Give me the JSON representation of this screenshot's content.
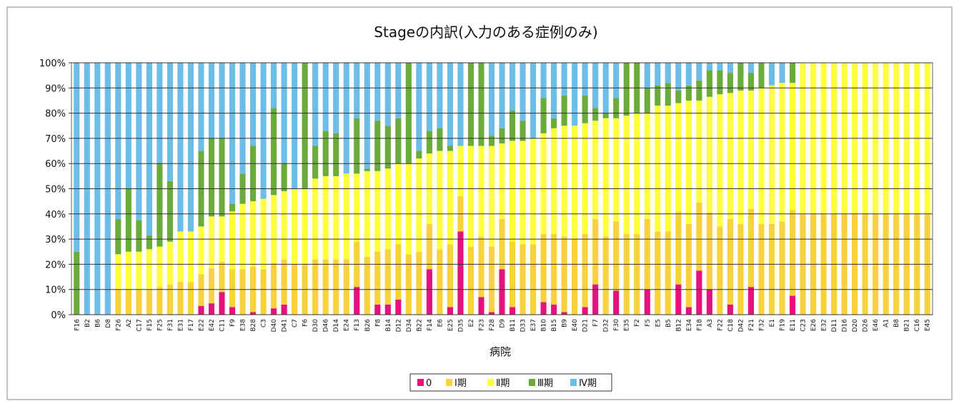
{
  "chart_data": {
    "type": "stacked_bar",
    "title": "Stageの内訳(入力のある症例のみ)",
    "x_label": "病院",
    "categories": [
      "F16",
      "B2",
      "B6",
      "D8",
      "F26",
      "A2",
      "C17",
      "F15",
      "F25",
      "F31",
      "E31",
      "F17",
      "E22",
      "E42",
      "C11",
      "F9",
      "E38",
      "B28",
      "C3",
      "D40",
      "D41",
      "C7",
      "F6",
      "D30",
      "D46",
      "D14",
      "E24",
      "F13",
      "B26",
      "F8",
      "B14",
      "D12",
      "D34",
      "B22",
      "F14",
      "E6",
      "E25",
      "D35",
      "E2",
      "F23",
      "F28",
      "D9",
      "B11",
      "D33",
      "E37",
      "B10",
      "B15",
      "B9",
      "E40",
      "D21",
      "F7",
      "D32",
      "F30",
      "E35",
      "F2",
      "F5",
      "E5",
      "B5",
      "B12",
      "E34",
      "F18",
      "A3",
      "F22",
      "C18",
      "D42",
      "F21",
      "F32",
      "E1",
      "F19",
      "E11",
      "C23",
      "E26",
      "E32",
      "D11",
      "D16",
      "D20",
      "D26",
      "E46",
      "A1",
      "B8",
      "B21",
      "C16",
      "E45"
    ],
    "series": [
      {
        "name": "0",
        "color": "#e5127d",
        "values": [
          0,
          0,
          0,
          0,
          0,
          0,
          0,
          0,
          0,
          0,
          0,
          0,
          3.5,
          4.5,
          9,
          3,
          0,
          1,
          0,
          2.5,
          4,
          0,
          0,
          0,
          0,
          0,
          0,
          11,
          0,
          4,
          4,
          6,
          0,
          0,
          18,
          0,
          3,
          33,
          0,
          7,
          1,
          18,
          3,
          0,
          0,
          5,
          4,
          1,
          0,
          3,
          12,
          0,
          9.5,
          0,
          0,
          10,
          0,
          0,
          12,
          3,
          17.5,
          10,
          0,
          4,
          0,
          11,
          0,
          0,
          0,
          7.5,
          0,
          0,
          0,
          0,
          0,
          0,
          0,
          0,
          0,
          0,
          0,
          0,
          0
        ]
      },
      {
        "name": "Ⅰ期",
        "color": "#f8d23c",
        "values": [
          0,
          0,
          0,
          0,
          10,
          10,
          10,
          10,
          11,
          12,
          13,
          13,
          12.5,
          14,
          12,
          15,
          18,
          18,
          18,
          18,
          18,
          20,
          20,
          22,
          22,
          22,
          22,
          18,
          23,
          21,
          22,
          22,
          24,
          25,
          18,
          26,
          25,
          14,
          27,
          24,
          26,
          20,
          26,
          28,
          28,
          27,
          28,
          30,
          30,
          29,
          26,
          31,
          27.5,
          32,
          32,
          28,
          33,
          33,
          29,
          33,
          27,
          30.5,
          35,
          34,
          36,
          31,
          36,
          36,
          37,
          34,
          40,
          40,
          40,
          40,
          40,
          40,
          40,
          40,
          40,
          40,
          40,
          40,
          40
        ]
      },
      {
        "name": "Ⅱ期",
        "color": "#ffff40",
        "values": [
          0,
          0,
          0,
          0,
          14,
          15,
          15,
          16,
          16,
          17,
          20,
          20,
          19,
          20.5,
          18,
          23,
          26,
          26,
          28,
          27,
          27,
          30,
          30,
          32,
          33,
          33,
          34,
          27,
          34,
          32,
          32,
          32,
          36,
          37,
          28,
          39,
          37,
          20,
          40,
          36,
          40,
          30,
          40,
          41,
          42,
          40,
          42,
          44,
          45,
          44,
          39,
          47,
          41,
          47,
          48,
          42,
          50,
          50,
          43,
          49,
          40.5,
          46,
          52.5,
          50,
          53,
          47,
          54,
          55,
          55,
          50.5,
          60,
          60,
          60,
          60,
          60,
          60,
          60,
          60,
          60,
          60,
          60,
          60,
          60
        ]
      },
      {
        "name": "Ⅲ期",
        "color": "#6aab3c",
        "values": [
          25,
          0,
          0,
          0,
          14,
          25,
          12.5,
          5.5,
          33,
          24,
          0,
          0,
          30,
          31,
          31,
          3,
          12,
          22,
          0,
          34.5,
          11,
          0,
          50,
          13,
          18,
          17,
          0,
          22,
          1,
          20,
          17,
          18,
          40,
          3,
          9,
          9,
          2,
          0,
          33,
          33,
          4,
          6,
          12,
          8,
          0,
          14,
          4,
          12,
          0,
          11,
          5,
          2,
          8,
          21,
          20,
          10,
          8,
          9,
          5,
          6,
          8,
          10.5,
          9.5,
          8,
          11,
          7,
          10,
          0,
          0,
          8,
          0,
          0,
          0,
          0,
          0,
          0,
          0,
          0,
          0,
          0,
          0,
          0,
          0
        ]
      },
      {
        "name": "Ⅳ期",
        "color": "#6dbde9",
        "values": [
          75,
          100,
          100,
          100,
          62,
          50,
          62.5,
          68.5,
          40,
          47,
          67,
          67,
          35,
          30,
          30,
          56,
          44,
          33,
          54,
          18,
          40,
          50,
          0,
          33,
          27,
          28,
          44,
          22,
          42,
          23,
          25,
          22,
          0,
          35,
          27,
          26,
          33,
          33,
          0,
          0,
          29,
          26,
          19,
          23,
          30,
          14,
          22,
          13,
          25,
          13,
          18,
          20,
          14,
          0,
          0,
          10,
          9,
          8,
          11,
          9,
          7,
          3,
          3,
          4,
          0,
          4,
          0,
          9,
          8,
          0,
          0,
          0,
          0,
          0,
          0,
          0,
          0,
          0,
          0,
          0,
          0,
          0,
          0
        ]
      }
    ],
    "ylim": [
      0,
      100
    ],
    "yticks": [
      {
        "value": 0,
        "label": "0%"
      },
      {
        "value": 10,
        "label": "10%"
      },
      {
        "value": 20,
        "label": "20%"
      },
      {
        "value": 30,
        "label": "30%"
      },
      {
        "value": 40,
        "label": "40%"
      },
      {
        "value": 50,
        "label": "50%"
      },
      {
        "value": 60,
        "label": "60%"
      },
      {
        "value": 70,
        "label": "70%"
      },
      {
        "value": 80,
        "label": "80%"
      },
      {
        "value": 90,
        "label": "90%"
      },
      {
        "value": 100,
        "label": "100%"
      }
    ],
    "grid": true,
    "legend": "bottom"
  }
}
